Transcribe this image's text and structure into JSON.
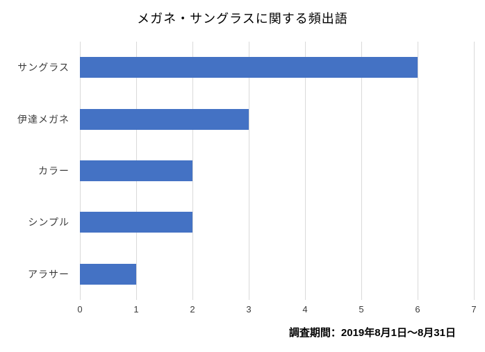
{
  "chart_data": {
    "type": "bar",
    "orientation": "horizontal",
    "title": "メガネ・サングラスに関する頻出語",
    "categories": [
      "サングラス",
      "伊達メガネ",
      "カラー",
      "シンプル",
      "アラサー"
    ],
    "values": [
      6,
      3,
      2,
      2,
      1
    ],
    "xlabel": "",
    "ylabel": "",
    "xlim": [
      0,
      7
    ],
    "ticks": [
      0,
      1,
      2,
      3,
      4,
      5,
      6,
      7
    ],
    "grid": true,
    "legend": "none",
    "bar_color": "#4472C4",
    "gridline_color": "#D9D9D9"
  },
  "footer": {
    "note": "調査期間：2019年8月1日～8月31日"
  }
}
